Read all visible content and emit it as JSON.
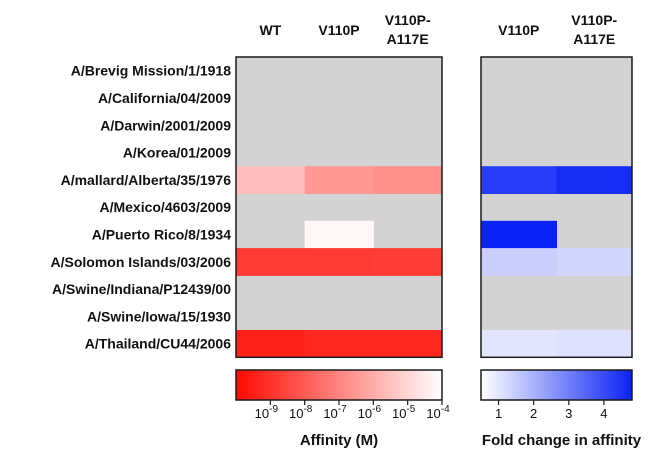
{
  "chart_data": [
    {
      "type": "heatmap",
      "title": "",
      "rows": [
        "A/Brevig Mission/1/1918",
        "A/California/04/2009",
        "A/Darwin/2001/2009",
        "A/Korea/01/2009",
        "A/mallard/Alberta/35/1976",
        "A/Mexico/4603/2009",
        "A/Puerto Rico/8/1934",
        "A/Solomon Islands/03/2006",
        "A/Swine/Indiana/P12439/00",
        "A/Swine/Iowa/15/1930",
        "A/Thailand/CU44/2006"
      ],
      "columns": [
        {
          "line1": "WT",
          "line2": ""
        },
        {
          "line1": "V110P",
          "line2": ""
        },
        {
          "line1": "V110P-",
          "line2": "A117E"
        }
      ],
      "values": [
        [
          null,
          null,
          null
        ],
        [
          null,
          null,
          null
        ],
        [
          null,
          null,
          null
        ],
        [
          null,
          null,
          null
        ],
        [
          -5.6,
          -6.5,
          -6.7
        ],
        [
          null,
          null,
          null
        ],
        [
          null,
          -4.2,
          null
        ],
        [
          -8.8,
          -8.8,
          -8.7
        ],
        [
          null,
          null,
          null
        ],
        [
          null,
          null,
          null
        ],
        [
          -9.4,
          -9.3,
          -9.3
        ]
      ],
      "colorbar": {
        "title": "Affinity (M)",
        "range": [
          -10,
          -4
        ],
        "tick_exponents": [
          "-9",
          "-8",
          "-7",
          "-6",
          "-5",
          "-4"
        ],
        "tick_base": "10",
        "low_color": "#ff0a00",
        "high_color": "#ffffff"
      }
    },
    {
      "type": "heatmap",
      "title": "",
      "rows": [
        "A/Brevig Mission/1/1918",
        "A/California/04/2009",
        "A/Darwin/2001/2009",
        "A/Korea/01/2009",
        "A/mallard/Alberta/35/1976",
        "A/Mexico/4603/2009",
        "A/Puerto Rico/8/1934",
        "A/Solomon Islands/03/2006",
        "A/Swine/Indiana/P12439/00",
        "A/Swine/Iowa/15/1930",
        "A/Thailand/CU44/2006"
      ],
      "columns": [
        {
          "line1": "V110P",
          "line2": ""
        },
        {
          "line1": "V110P-",
          "line2": "A117E"
        }
      ],
      "values": [
        [
          null,
          null
        ],
        [
          null,
          null
        ],
        [
          null,
          null
        ],
        [
          null,
          null
        ],
        [
          4.3,
          4.6
        ],
        [
          null,
          null
        ],
        [
          4.9,
          null
        ],
        [
          1.45,
          1.3
        ],
        [
          null,
          null
        ],
        [
          null,
          null
        ],
        [
          1.0,
          1.1
        ]
      ],
      "colorbar": {
        "title": "Fold change in affinity",
        "range": [
          0.5,
          4.8
        ],
        "ticks": [
          "1",
          "2",
          "3",
          "4"
        ],
        "low_color": "#ffffff",
        "high_color": "#0a22f5"
      }
    }
  ],
  "colors": {
    "no_data": "#d3d3d3",
    "border": "#1a1a1a"
  }
}
